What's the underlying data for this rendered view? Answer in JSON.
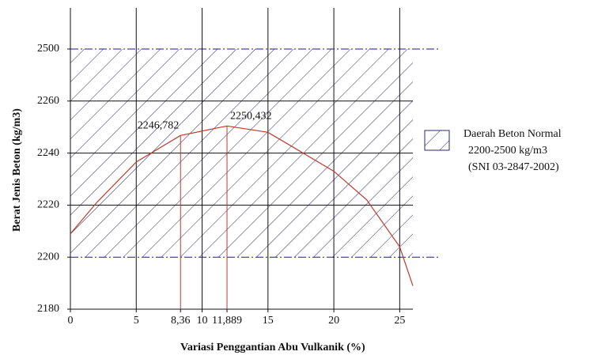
{
  "chart_data": {
    "type": "line",
    "x_label": "Variasi Penggantian Abu Vulkanik (%)",
    "y_label": "Berat Jenis Beton (kg/m3)",
    "xlim": [
      0,
      26
    ],
    "xticks": [
      0,
      5,
      {
        "value": 8.36,
        "label": "8,36"
      },
      10,
      {
        "value": 11.889,
        "label": "11,889"
      },
      15,
      20,
      25
    ],
    "grid_x": [
      5,
      10,
      15,
      20,
      25
    ],
    "yticks": [
      2180,
      2200,
      2220,
      2240,
      2260,
      2500
    ],
    "grid_y": [
      2220,
      2240,
      2260
    ],
    "series": [
      {
        "color": "#c0392b",
        "x": [
          0,
          2,
          5,
          8.36,
          11.889,
          15,
          20,
          22.5,
          25,
          26
        ],
        "values": [
          2209,
          2221,
          2236.6,
          2246.782,
          2250.432,
          2248,
          2233,
          2222,
          2204,
          2189
        ]
      }
    ],
    "annotations": [
      {
        "x": 8.36,
        "y": 2246.782,
        "label": "2246,782"
      },
      {
        "x": 11.889,
        "y": 2250.432,
        "label": "2250,432"
      }
    ],
    "band": {
      "ymin": 2200,
      "ymax": 2500,
      "color": "#1a1a8c",
      "label": [
        "Daerah Beton Normal",
        "2200-2500 kg/m3",
        "(SNI 03-2847-2002)"
      ]
    }
  }
}
